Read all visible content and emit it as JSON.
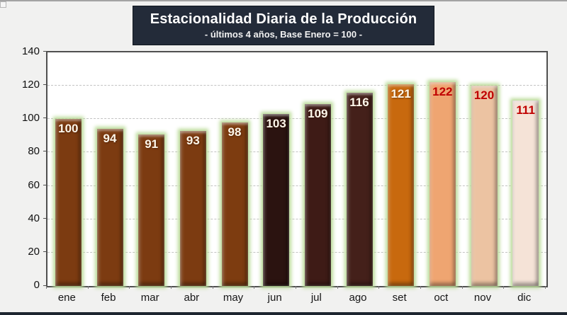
{
  "window": {
    "background_color": "#F1F1F0",
    "bottom_bar_color": "#1E2630"
  },
  "header": {
    "title": "Estacionalidad Diaria de la Producción",
    "subtitle": "- últimos 4 años, Base Enero = 100 -",
    "box_color": "#232B39",
    "title_color": "#FFFFFF",
    "subtitle_color": "#F2F2F2"
  },
  "chart_data": {
    "type": "bar",
    "title": "Estacionalidad Diaria de la Producción",
    "subtitle": "- últimos 4 años, Base Enero = 100 -",
    "categories": [
      "ene",
      "feb",
      "mar",
      "abr",
      "may",
      "jun",
      "jul",
      "ago",
      "set",
      "oct",
      "nov",
      "dic"
    ],
    "values": [
      100,
      94,
      91,
      93,
      98,
      103,
      109,
      116,
      121,
      122,
      120,
      111
    ],
    "bar_colors": [
      "#7C3B11",
      "#7C3B11",
      "#7C3B11",
      "#7C3B11",
      "#7D3C10",
      "#2B1310",
      "#3E1B16",
      "#44201A",
      "#C8690E",
      "#EFA571",
      "#ECC3A2",
      "#F5E3D7"
    ],
    "label_colors": [
      "#FDF6EA",
      "#FDF6EA",
      "#FDF6EA",
      "#FDF6EA",
      "#FDF6EA",
      "#FDF6EA",
      "#FDF6EA",
      "#FDF6EA",
      "#FDF6EA",
      "#C00000",
      "#C00000",
      "#C00000"
    ],
    "label_shadows": [
      true,
      true,
      true,
      true,
      true,
      true,
      true,
      true,
      true,
      false,
      false,
      false
    ],
    "glow_color": "#BBDB99",
    "xlabel": "",
    "ylabel": "",
    "ylim": [
      0,
      140
    ],
    "yticks": [
      0,
      20,
      40,
      60,
      80,
      100,
      120,
      140
    ],
    "grid": "horizontal-dashed",
    "plot_background": "#FFFFFF",
    "legend": "none"
  }
}
